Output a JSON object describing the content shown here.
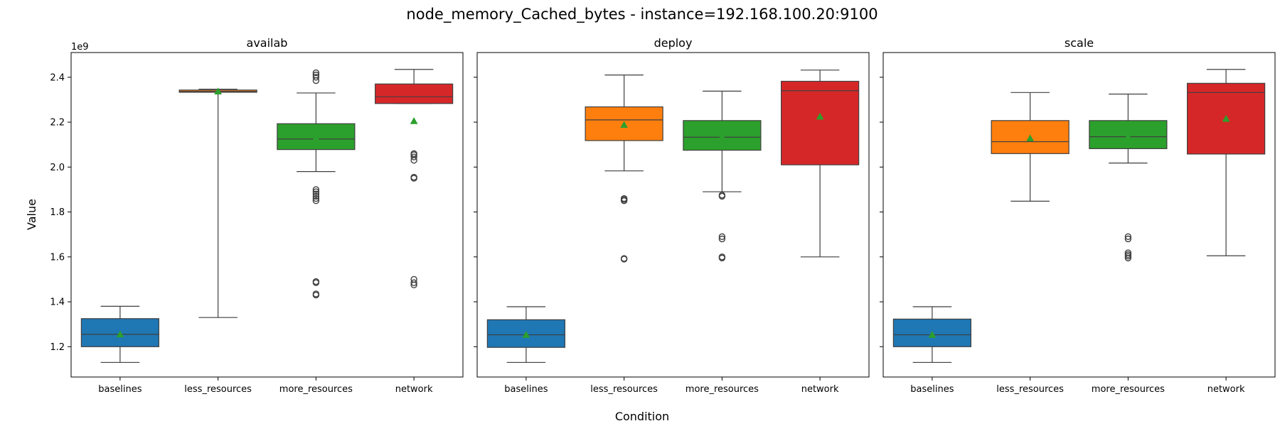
{
  "figure": {
    "title": "node_memory_Cached_bytes - instance=192.168.100.20:9100",
    "ylabel": "Value",
    "xlabel": "Condition",
    "y_offset_label": "1e9"
  },
  "chart_data": [
    {
      "type": "box",
      "title": "availab",
      "categories": [
        "baselines",
        "less_resources",
        "more_resources",
        "network"
      ],
      "colors": [
        "#1f77b4",
        "#ff7f0e",
        "#2ca02c",
        "#d62728"
      ],
      "ylim": [
        1.065,
        2.51
      ],
      "y_scale_factor": "1e9",
      "yticks": [
        1.2,
        1.4,
        1.6,
        1.8,
        2.0,
        2.2,
        2.4
      ],
      "show_mean": true,
      "boxes": [
        {
          "category": "baselines",
          "whisker_low": 1.13,
          "q1": 1.2,
          "median": 1.255,
          "q3": 1.325,
          "whisker_high": 1.38,
          "mean": 1.255,
          "outliers": []
        },
        {
          "category": "less_resources",
          "whisker_low": 1.33,
          "q1": 2.333,
          "median": 2.337,
          "q3": 2.343,
          "whisker_high": 2.347,
          "mean": 2.337,
          "outliers": []
        },
        {
          "category": "more_resources",
          "whisker_low": 1.98,
          "q1": 2.078,
          "median": 2.125,
          "q3": 2.193,
          "whisker_high": 2.33,
          "mean": 2.13,
          "outliers": [
            1.435,
            1.43,
            1.49,
            1.485,
            1.85,
            1.86,
            1.87,
            1.88,
            1.89,
            1.9,
            2.385,
            2.4,
            2.41,
            2.42
          ]
        },
        {
          "category": "network",
          "whisker_low": 2.283,
          "q1": 2.283,
          "median": 2.313,
          "q3": 2.37,
          "whisker_high": 2.435,
          "mean": 2.205,
          "outliers": [
            1.475,
            1.485,
            1.5,
            1.95,
            1.955,
            2.03,
            2.045,
            2.055,
            2.06
          ]
        }
      ]
    },
    {
      "type": "box",
      "title": "deploy",
      "categories": [
        "baselines",
        "less_resources",
        "more_resources",
        "network"
      ],
      "colors": [
        "#1f77b4",
        "#ff7f0e",
        "#2ca02c",
        "#d62728"
      ],
      "ylim": [
        1.065,
        2.51
      ],
      "y_scale_factor": "1e9",
      "yticks": [
        1.2,
        1.4,
        1.6,
        1.8,
        2.0,
        2.2,
        2.4
      ],
      "show_mean": true,
      "boxes": [
        {
          "category": "baselines",
          "whisker_low": 1.13,
          "q1": 1.197,
          "median": 1.253,
          "q3": 1.32,
          "whisker_high": 1.378,
          "mean": 1.253,
          "outliers": []
        },
        {
          "category": "less_resources",
          "whisker_low": 1.983,
          "q1": 2.118,
          "median": 2.21,
          "q3": 2.268,
          "whisker_high": 2.41,
          "mean": 2.188,
          "outliers": [
            1.59,
            1.593,
            1.85,
            1.855,
            1.86
          ]
        },
        {
          "category": "more_resources",
          "whisker_low": 1.89,
          "q1": 2.075,
          "median": 2.133,
          "q3": 2.207,
          "whisker_high": 2.338,
          "mean": 2.135,
          "outliers": [
            1.595,
            1.6,
            1.68,
            1.69,
            1.87,
            1.875
          ]
        },
        {
          "category": "network",
          "whisker_low": 1.6,
          "q1": 2.01,
          "median": 2.34,
          "q3": 2.382,
          "whisker_high": 2.432,
          "mean": 2.225,
          "outliers": []
        }
      ]
    },
    {
      "type": "box",
      "title": "scale",
      "categories": [
        "baselines",
        "less_resources",
        "more_resources",
        "network"
      ],
      "colors": [
        "#1f77b4",
        "#ff7f0e",
        "#2ca02c",
        "#d62728"
      ],
      "ylim": [
        1.065,
        2.51
      ],
      "y_scale_factor": "1e9",
      "yticks": [
        1.2,
        1.4,
        1.6,
        1.8,
        2.0,
        2.2,
        2.4
      ],
      "show_mean": true,
      "boxes": [
        {
          "category": "baselines",
          "whisker_low": 1.13,
          "q1": 1.2,
          "median": 1.253,
          "q3": 1.323,
          "whisker_high": 1.378,
          "mean": 1.253,
          "outliers": []
        },
        {
          "category": "less_resources",
          "whisker_low": 1.848,
          "q1": 2.06,
          "median": 2.113,
          "q3": 2.207,
          "whisker_high": 2.332,
          "mean": 2.128,
          "outliers": []
        },
        {
          "category": "more_resources",
          "whisker_low": 2.018,
          "q1": 2.082,
          "median": 2.135,
          "q3": 2.207,
          "whisker_high": 2.325,
          "mean": 2.135,
          "outliers": [
            1.595,
            1.603,
            1.61,
            1.618,
            1.68,
            1.69
          ]
        },
        {
          "category": "network",
          "whisker_low": 1.605,
          "q1": 2.058,
          "median": 2.332,
          "q3": 2.373,
          "whisker_high": 2.435,
          "mean": 2.215,
          "outliers": []
        }
      ]
    }
  ]
}
